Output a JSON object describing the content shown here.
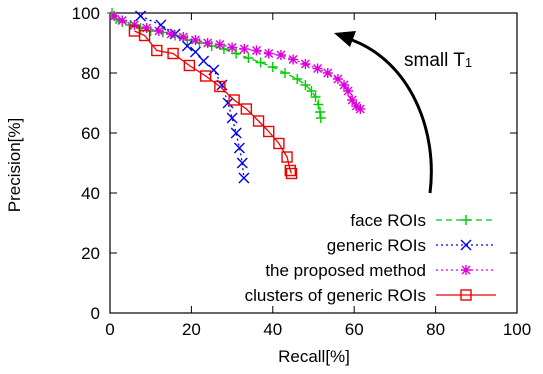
{
  "chart_data": {
    "type": "line",
    "xlabel": "Recall[%]",
    "ylabel": "Precision[%]",
    "xlim": [
      0,
      100
    ],
    "ylim": [
      0,
      100
    ],
    "xticks": [
      0,
      20,
      40,
      60,
      80,
      100
    ],
    "yticks": [
      0,
      20,
      40,
      60,
      80,
      100
    ],
    "legend_position": "bottom-right",
    "annotation": {
      "text": "small T",
      "subscript": "1",
      "arrow": "curved arrow pointing up-left"
    },
    "series": [
      {
        "name": "face ROIs",
        "color": "#00cc00",
        "marker": "plus",
        "line": "dashed",
        "x": [
          0.5,
          1.5,
          3,
          5,
          7.5,
          10,
          13,
          16,
          19,
          22,
          25,
          28,
          31,
          34,
          37,
          40,
          43,
          46,
          48,
          49.5,
          50.5,
          51.2,
          51.6,
          51.8
        ],
        "y": [
          100,
          98,
          97,
          96,
          95,
          94,
          93.5,
          92.5,
          91,
          90,
          89,
          88,
          86.5,
          85,
          83.5,
          82,
          80,
          78,
          76,
          74,
          72,
          69.5,
          67,
          65
        ]
      },
      {
        "name": "generic ROIs",
        "color": "#0000ee",
        "marker": "x",
        "line": "dotted",
        "x": [
          7.5,
          12.5,
          16,
          19,
          21,
          23,
          25.5,
          27.5,
          29,
          30,
          31,
          31.8,
          32.5,
          32.9
        ],
        "y": [
          99,
          96,
          93,
          89,
          87,
          84,
          81,
          76,
          70,
          65,
          60,
          55,
          50,
          45
        ]
      },
      {
        "name": "the proposed method",
        "color": "#dd00dd",
        "marker": "star",
        "line": "dotted",
        "x": [
          1,
          3,
          6,
          9,
          12,
          15,
          18,
          21,
          24,
          27,
          30,
          33,
          36,
          39,
          42,
          45,
          48,
          51,
          53.5,
          56,
          57.5,
          58.5,
          59.5,
          60.5,
          61.5
        ],
        "y": [
          99,
          97.5,
          96,
          95,
          94,
          93,
          92,
          91,
          90,
          89.5,
          88.5,
          88,
          87.5,
          86.5,
          86,
          84.5,
          83,
          81.5,
          80,
          78,
          76,
          74,
          71,
          69,
          68
        ]
      },
      {
        "name": "clusters of generic ROIs",
        "color": "#ee0000",
        "marker": "square",
        "line": "solid",
        "x": [
          6,
          8.5,
          11.5,
          15.5,
          19.5,
          23.5,
          27,
          30.5,
          33.5,
          36.5,
          39,
          41.5,
          43.5,
          44.3,
          44.6
        ],
        "y": [
          94,
          92.5,
          87.5,
          86.5,
          82.5,
          79,
          75.5,
          71,
          68,
          64,
          60.5,
          56.5,
          52,
          47.5,
          46.5
        ]
      }
    ]
  }
}
